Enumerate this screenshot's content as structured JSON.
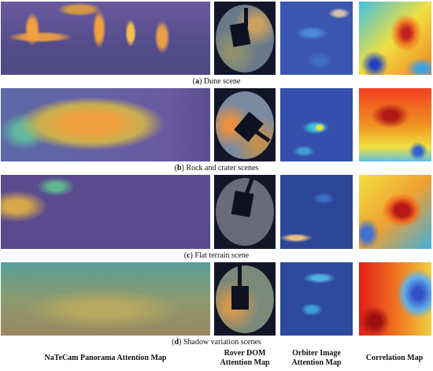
{
  "rows": [
    {
      "open": "(",
      "tag": "a",
      "close": ")",
      "caption": "Dune scene"
    },
    {
      "open": "(",
      "tag": "b",
      "close": ")",
      "caption": "Rock and crater scenes"
    },
    {
      "open": "(",
      "tag": "c",
      "close": ")",
      "caption": "Flat terrain scene"
    },
    {
      "open": "(",
      "tag": "d",
      "close": ")",
      "caption": "Shadow variation scenes"
    }
  ],
  "columns": [
    {
      "lines": [
        "NaTeCam Panorama Attention Map"
      ]
    },
    {
      "lines": [
        "Rover DOM",
        "Attention Map"
      ]
    },
    {
      "lines": [
        "Orbiter Image",
        "Attention Map"
      ]
    },
    {
      "lines": [
        "Correlation Map"
      ]
    }
  ]
}
